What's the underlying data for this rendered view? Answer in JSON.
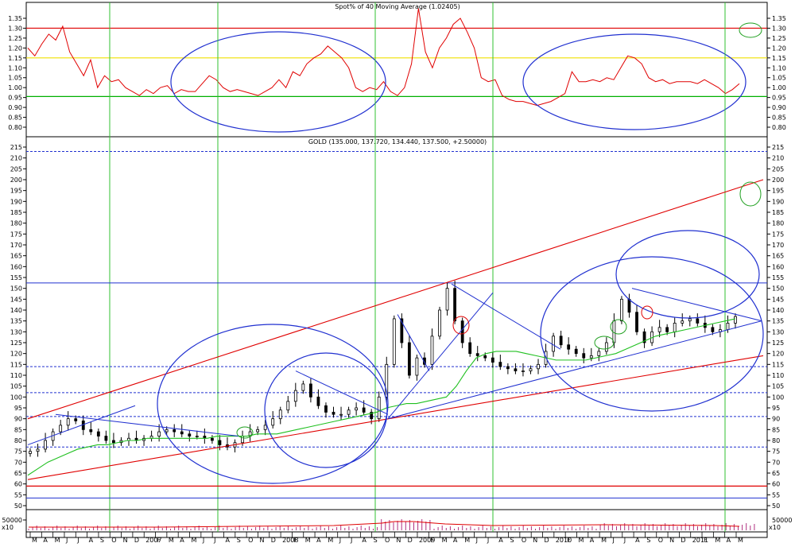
{
  "chart_data": [
    {
      "type": "line",
      "title": "Spot% of 40 Moving Average (1.02405)",
      "ylim": [
        0.75,
        1.4
      ],
      "yticks": [
        "1.35",
        "1.30",
        "1.25",
        "1.20",
        "1.15",
        "1.10",
        "1.05",
        "1.00",
        "0.95",
        "0.90",
        "0.85",
        "0.80"
      ],
      "hlines": [
        {
          "y": 1.3,
          "color": "#e00000"
        },
        {
          "y": 1.15,
          "color": "#f0e000"
        },
        {
          "y": 0.955,
          "color": "#00b000"
        }
      ],
      "series": [
        {
          "color": "#e00000",
          "points": [
            [
              0,
              1.2
            ],
            [
              1,
              1.16
            ],
            [
              2,
              1.22
            ],
            [
              3,
              1.27
            ],
            [
              4,
              1.24
            ],
            [
              5,
              1.31
            ],
            [
              6,
              1.18
            ],
            [
              7,
              1.12
            ],
            [
              8,
              1.06
            ],
            [
              9,
              1.14
            ],
            [
              10,
              1.0
            ],
            [
              11,
              1.06
            ],
            [
              12,
              1.03
            ],
            [
              13,
              1.04
            ],
            [
              14,
              1.0
            ],
            [
              15,
              0.98
            ],
            [
              16,
              0.96
            ],
            [
              17,
              0.99
            ],
            [
              18,
              0.97
            ],
            [
              19,
              1.0
            ],
            [
              20,
              1.01
            ],
            [
              21,
              0.97
            ],
            [
              22,
              0.99
            ],
            [
              23,
              0.98
            ],
            [
              24,
              0.98
            ],
            [
              25,
              1.02
            ],
            [
              26,
              1.06
            ],
            [
              27,
              1.04
            ],
            [
              28,
              1.0
            ],
            [
              29,
              0.98
            ],
            [
              30,
              0.99
            ],
            [
              31,
              0.98
            ],
            [
              32,
              0.97
            ],
            [
              33,
              0.96
            ],
            [
              34,
              0.98
            ],
            [
              35,
              1.0
            ],
            [
              36,
              1.04
            ],
            [
              37,
              1.0
            ],
            [
              38,
              1.08
            ],
            [
              39,
              1.06
            ],
            [
              40,
              1.12
            ],
            [
              41,
              1.15
            ],
            [
              42,
              1.17
            ],
            [
              43,
              1.21
            ],
            [
              44,
              1.18
            ],
            [
              45,
              1.15
            ],
            [
              46,
              1.1
            ],
            [
              47,
              1.0
            ],
            [
              48,
              0.98
            ],
            [
              49,
              1.0
            ],
            [
              50,
              0.99
            ],
            [
              51,
              1.03
            ],
            [
              52,
              0.98
            ],
            [
              53,
              0.96
            ],
            [
              54,
              1.0
            ],
            [
              55,
              1.12
            ],
            [
              56,
              1.4
            ],
            [
              57,
              1.18
            ],
            [
              58,
              1.1
            ],
            [
              59,
              1.2
            ],
            [
              60,
              1.25
            ],
            [
              61,
              1.32
            ],
            [
              62,
              1.35
            ],
            [
              63,
              1.28
            ],
            [
              64,
              1.2
            ],
            [
              65,
              1.05
            ],
            [
              66,
              1.03
            ],
            [
              67,
              1.04
            ],
            [
              68,
              0.96
            ],
            [
              69,
              0.94
            ],
            [
              70,
              0.93
            ],
            [
              71,
              0.93
            ],
            [
              72,
              0.92
            ],
            [
              73,
              0.91
            ],
            [
              74,
              0.92
            ],
            [
              75,
              0.93
            ],
            [
              76,
              0.95
            ],
            [
              77,
              0.97
            ],
            [
              78,
              1.08
            ],
            [
              79,
              1.03
            ],
            [
              80,
              1.03
            ],
            [
              81,
              1.04
            ],
            [
              82,
              1.03
            ],
            [
              83,
              1.05
            ],
            [
              84,
              1.04
            ],
            [
              85,
              1.1
            ],
            [
              86,
              1.16
            ],
            [
              87,
              1.15
            ],
            [
              88,
              1.12
            ],
            [
              89,
              1.05
            ],
            [
              90,
              1.03
            ],
            [
              91,
              1.04
            ],
            [
              92,
              1.02
            ],
            [
              93,
              1.03
            ],
            [
              94,
              1.03
            ],
            [
              95,
              1.03
            ],
            [
              96,
              1.02
            ],
            [
              97,
              1.04
            ],
            [
              98,
              1.02
            ],
            [
              99,
              1.0
            ],
            [
              100,
              0.97
            ],
            [
              101,
              0.99
            ],
            [
              102,
              1.02
            ]
          ]
        }
      ],
      "annotations": [
        "ellipse",
        "ellipse",
        "ellipse-green"
      ]
    },
    {
      "type": "candlestick",
      "title": "GOLD (135.000, 137.720, 134.440, 137.500, +2.50000)",
      "ylim": [
        48,
        217
      ],
      "yticks": [
        "215",
        "210",
        "205",
        "200",
        "195",
        "190",
        "185",
        "180",
        "175",
        "170",
        "165",
        "160",
        "155",
        "150",
        "145",
        "140",
        "135",
        "130",
        "125",
        "120",
        "115",
        "110",
        "105",
        "100",
        "95",
        "90",
        "85",
        "80",
        "75",
        "70",
        "65",
        "60",
        "55",
        "50"
      ],
      "x_labels": [
        "M",
        "A",
        "M",
        "J",
        "J",
        "A",
        "S",
        "O",
        "N",
        "D",
        "2007",
        "F",
        "M",
        "A",
        "M",
        "J",
        "J",
        "A",
        "S",
        "O",
        "N",
        "D",
        "2008",
        "F",
        "M",
        "A",
        "M",
        "J",
        "J",
        "A",
        "S",
        "O",
        "N",
        "D",
        "2009",
        "F",
        "M",
        "A",
        "M",
        "J",
        "J",
        "A",
        "S",
        "O",
        "N",
        "D",
        "2010",
        "F",
        "M",
        "A",
        "M",
        "J",
        "J",
        "A",
        "S",
        "O",
        "N",
        "D",
        "2011",
        "F",
        "M",
        "A",
        "M"
      ],
      "closes": [
        75,
        76,
        80,
        84,
        87,
        90,
        89,
        85,
        84,
        82,
        80,
        79,
        80,
        81,
        80,
        81,
        82,
        84,
        85,
        84,
        83,
        82,
        82,
        81,
        80,
        78,
        77,
        79,
        82,
        84,
        85,
        87,
        90,
        94,
        98,
        103,
        106,
        100,
        96,
        93,
        92,
        92,
        94,
        95,
        93,
        90,
        100,
        115,
        136,
        125,
        110,
        118,
        115,
        128,
        140,
        150,
        135,
        125,
        120,
        119,
        118,
        116,
        114,
        113,
        112,
        112,
        113,
        115,
        121,
        128,
        124,
        122,
        120,
        118,
        119,
        121,
        125,
        135,
        145,
        139,
        130,
        125,
        130,
        132,
        130,
        134,
        135,
        136,
        134,
        132,
        130,
        131,
        134,
        137
      ],
      "moving_average": [
        64,
        67,
        70,
        72,
        74,
        76,
        77,
        78,
        78,
        79,
        80,
        80,
        81,
        81,
        81,
        81,
        81,
        81,
        81,
        82,
        82,
        82,
        82,
        83,
        83,
        83,
        84,
        85,
        86,
        87,
        88,
        89,
        90,
        91,
        92,
        93,
        95,
        96,
        97,
        97,
        98,
        99,
        100,
        105,
        112,
        118,
        120,
        121,
        121,
        121,
        120,
        119,
        118,
        117,
        117,
        117,
        117,
        118,
        119,
        120,
        122,
        124,
        126,
        128,
        129,
        130,
        131,
        132,
        133,
        134,
        135,
        136
      ],
      "volume_ticks": [
        "50000",
        "x10"
      ],
      "hlines_blue": [
        152.5,
        114,
        102,
        91,
        77,
        53.5
      ],
      "hlines_red": [
        59
      ]
    }
  ]
}
